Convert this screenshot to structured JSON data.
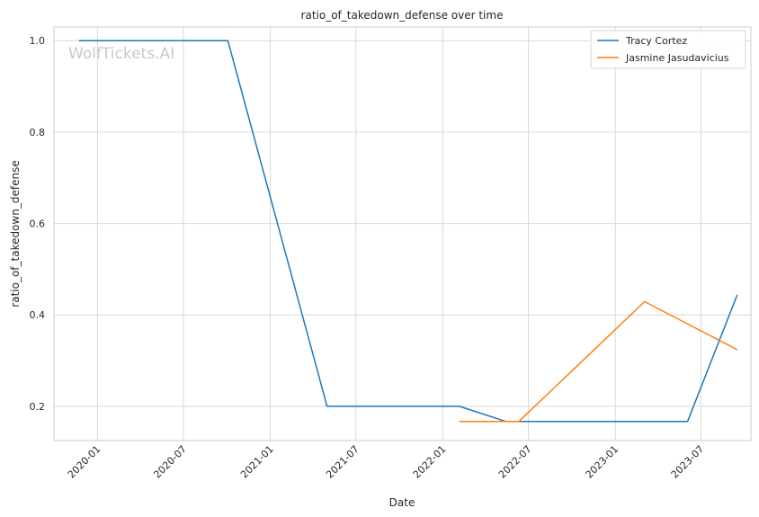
{
  "watermark": "WolfTickets.AI",
  "chart_data": {
    "type": "line",
    "title": "ratio_of_takedown_defense over time",
    "xlabel": "Date",
    "ylabel": "ratio_of_takedown_defense",
    "x_scale": "date",
    "xlim": [
      "2019-10-01",
      "2023-10-15"
    ],
    "ylim": [
      0.125,
      1.03
    ],
    "x_ticks": [
      "2020-01",
      "2020-07",
      "2021-01",
      "2021-07",
      "2022-01",
      "2022-07",
      "2023-01",
      "2023-07"
    ],
    "y_ticks": [
      0.2,
      0.4,
      0.6,
      0.8,
      1.0
    ],
    "y_tick_labels": [
      "0.2",
      "0.4",
      "0.6",
      "0.8",
      "1.0"
    ],
    "grid": true,
    "legend_position": "top-right",
    "series": [
      {
        "name": "Tracy Cortez",
        "color": "#1f77b4",
        "points": [
          {
            "x": "2019-11-23",
            "y": 1.0
          },
          {
            "x": "2020-10-03",
            "y": 1.0
          },
          {
            "x": "2021-05-01",
            "y": 0.2
          },
          {
            "x": "2022-02-05",
            "y": 0.2
          },
          {
            "x": "2022-05-14",
            "y": 0.167
          },
          {
            "x": "2023-06-03",
            "y": 0.167
          },
          {
            "x": "2023-09-16",
            "y": 0.444
          }
        ]
      },
      {
        "name": "Jasmine Jasudavicius",
        "color": "#ff7f0e",
        "points": [
          {
            "x": "2022-02-05",
            "y": 0.167
          },
          {
            "x": "2022-06-11",
            "y": 0.167
          },
          {
            "x": "2023-03-04",
            "y": 0.429
          },
          {
            "x": "2023-09-16",
            "y": 0.324
          }
        ]
      }
    ]
  }
}
